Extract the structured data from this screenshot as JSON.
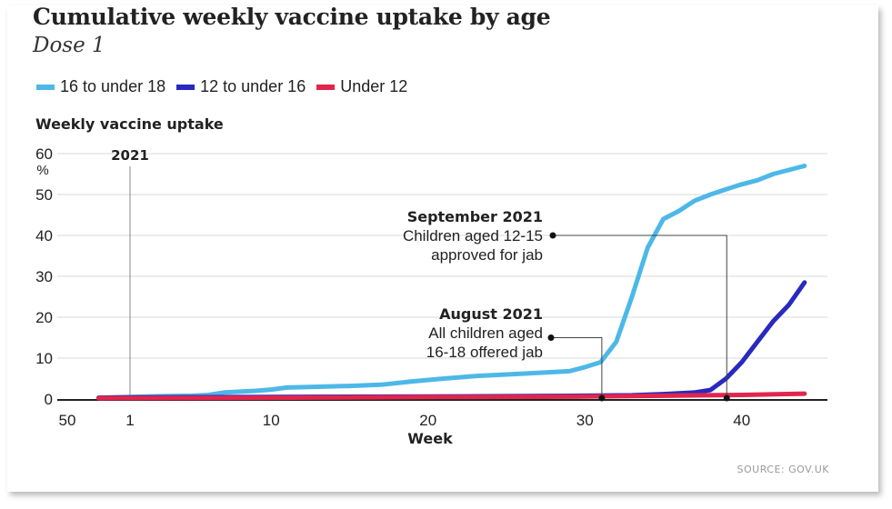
{
  "chart_data": {
    "type": "line",
    "title": "Cumulative weekly vaccine uptake by age",
    "subtitle": "Dose 1",
    "ylabel": "Weekly vaccine uptake",
    "yunit": "%",
    "xlabel": "Week",
    "ylim": [
      0,
      60
    ],
    "yticks": [
      0,
      10,
      20,
      30,
      40,
      50,
      60
    ],
    "xtick_labels": [
      "50",
      "1",
      "10",
      "20",
      "30",
      "40"
    ],
    "year_marker": "2021",
    "grid": true,
    "legend_position": "top-left",
    "series": [
      {
        "name": "16 to under 18",
        "color": "#4db8e8",
        "points": [
          [
            -1,
            0.3
          ],
          [
            1,
            0.5
          ],
          [
            3,
            0.7
          ],
          [
            5,
            0.8
          ],
          [
            6,
            1.0
          ],
          [
            7,
            1.6
          ],
          [
            8,
            1.8
          ],
          [
            9,
            2.0
          ],
          [
            10,
            2.3
          ],
          [
            11,
            2.8
          ],
          [
            13,
            3.0
          ],
          [
            15,
            3.2
          ],
          [
            17,
            3.5
          ],
          [
            19,
            4.3
          ],
          [
            21,
            5.0
          ],
          [
            23,
            5.6
          ],
          [
            25,
            6.0
          ],
          [
            27,
            6.4
          ],
          [
            29,
            6.8
          ],
          [
            30,
            7.8
          ],
          [
            31,
            9.0
          ],
          [
            32,
            14.0
          ],
          [
            33,
            25.0
          ],
          [
            34,
            37.0
          ],
          [
            35,
            44.0
          ],
          [
            36,
            46.0
          ],
          [
            37,
            48.5
          ],
          [
            38,
            50.0
          ],
          [
            39,
            51.3
          ],
          [
            40,
            52.5
          ],
          [
            41,
            53.5
          ],
          [
            42,
            55.0
          ],
          [
            43,
            56.0
          ],
          [
            44,
            57.0
          ]
        ]
      },
      {
        "name": "12 to under 16",
        "color": "#2929bf",
        "points": [
          [
            -1,
            0.3
          ],
          [
            1,
            0.4
          ],
          [
            10,
            0.5
          ],
          [
            20,
            0.6
          ],
          [
            30,
            0.8
          ],
          [
            33,
            0.9
          ],
          [
            35,
            1.2
          ],
          [
            37,
            1.6
          ],
          [
            38,
            2.2
          ],
          [
            39,
            5.0
          ],
          [
            40,
            9.0
          ],
          [
            41,
            14.0
          ],
          [
            42,
            19.0
          ],
          [
            43,
            23.0
          ],
          [
            44,
            28.5
          ]
        ]
      },
      {
        "name": "Under 12",
        "color": "#e0264d",
        "points": [
          [
            -1,
            0.2
          ],
          [
            10,
            0.3
          ],
          [
            20,
            0.5
          ],
          [
            30,
            0.6
          ],
          [
            35,
            0.8
          ],
          [
            40,
            1.0
          ],
          [
            44,
            1.3
          ]
        ]
      }
    ],
    "annotations": [
      {
        "title": "September 2021",
        "lines": [
          "Children aged 12-15",
          "approved for jab"
        ],
        "week": 38,
        "y": 40
      },
      {
        "title": "August 2021",
        "lines": [
          "All children aged",
          "16-18 offered jab"
        ],
        "week": 30.5,
        "y": 15
      }
    ],
    "source": "SOURCE: GOV.UK"
  }
}
